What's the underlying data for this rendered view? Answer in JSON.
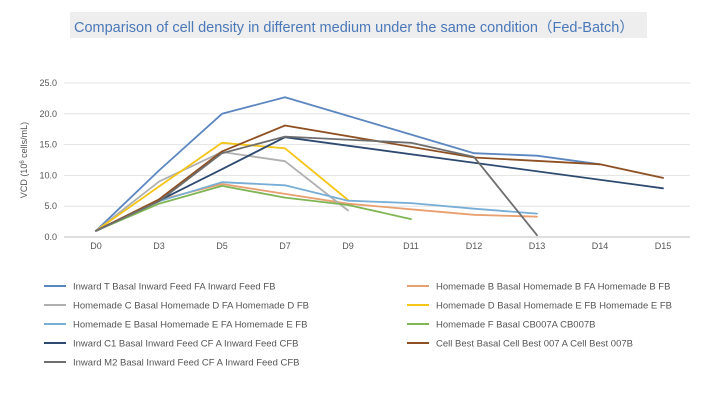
{
  "chart_data": {
    "type": "line",
    "title": "Comparison of cell density in different medium under the same condition（Fed-Batch）",
    "ylabel_prefix": "VCD (10",
    "ylabel_sup": "6",
    "ylabel_suffix": " cells/mL)",
    "categories": [
      "D0",
      "D3",
      "D5",
      "D7",
      "D9",
      "D11",
      "D12",
      "D13",
      "D14",
      "D15"
    ],
    "ylim": [
      0,
      25
    ],
    "yticks": [
      "0.0",
      "5.0",
      "10.0",
      "15.0",
      "20.0",
      "25.0"
    ],
    "ytick_values": [
      0,
      5,
      10,
      15,
      20,
      25
    ],
    "grid": true,
    "legend_position": "bottom",
    "series": [
      {
        "name": "Inward T Basal Inward Feed FA Inward Feed FB",
        "color": "#5b86c0",
        "values": [
          1.0,
          10.8,
          20.0,
          22.7,
          null,
          null,
          13.6,
          13.2,
          11.8,
          null
        ]
      },
      {
        "name": "Homemade B Basal Homemade B FA Homemade B FB",
        "color": "#e8a070",
        "values": [
          1.0,
          6.0,
          8.6,
          7.0,
          5.4,
          4.5,
          3.6,
          3.3,
          null,
          null
        ]
      },
      {
        "name": "Homemade C Basal Homemade D FA Homemade D FB",
        "color": "#b0b0b0",
        "values": [
          1.0,
          9.0,
          13.8,
          12.3,
          4.3,
          null,
          null,
          null,
          null,
          null
        ]
      },
      {
        "name": "Homemade D Basal Homemade E FB Homemade E FB",
        "color": "#f5c518",
        "values": [
          1.0,
          8.2,
          15.3,
          14.4,
          6.0,
          null,
          null,
          null,
          null,
          null
        ]
      },
      {
        "name": "Homemade E Basal Homemade E FA Homemade E FB",
        "color": "#78aed6",
        "values": [
          1.0,
          5.8,
          8.9,
          8.4,
          5.9,
          5.5,
          4.6,
          3.8,
          null,
          null
        ]
      },
      {
        "name": "Homemade F Basal CB007A CB007B",
        "color": "#7fb554",
        "values": [
          1.0,
          5.4,
          8.3,
          6.4,
          5.2,
          2.9,
          null,
          null,
          null,
          null
        ]
      },
      {
        "name": "Inward C1 Basal Inward Feed CF A Inward Feed CFB",
        "color": "#2e4a70",
        "values": [
          1.0,
          5.9,
          11.0,
          16.2,
          null,
          null,
          null,
          null,
          null,
          7.9
        ]
      },
      {
        "name": "Cell Best Basal Cell Best 007 A Cell Best 007B",
        "color": "#8e5022",
        "values": [
          1.0,
          6.1,
          13.9,
          18.1,
          null,
          null,
          12.9,
          null,
          11.8,
          9.6
        ]
      },
      {
        "name": "Inward M2 Basal Inward Feed CF A Inward Feed CFB",
        "color": "#6e6e6e",
        "values": [
          1.0,
          5.8,
          13.6,
          16.3,
          null,
          15.3,
          13.0,
          0.3,
          null,
          null
        ]
      }
    ]
  }
}
